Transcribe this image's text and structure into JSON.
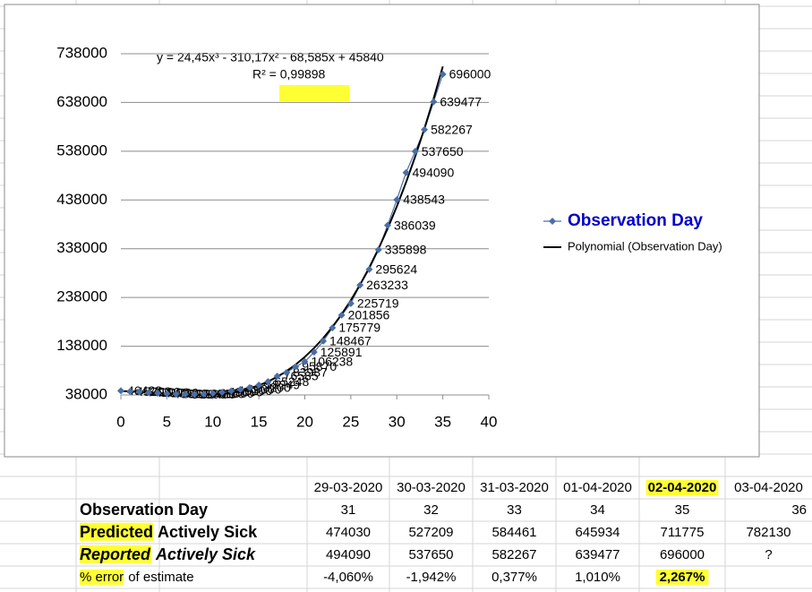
{
  "chart_data": {
    "type": "scatter",
    "trendline_equation": "y = 24,45x³ - 310,17x² - 68,585x + 45840",
    "r_squared": "R² = 0,99898",
    "x": [
      0,
      1,
      2,
      3,
      4,
      5,
      6,
      7,
      8,
      9,
      10,
      11,
      12,
      13,
      14,
      15,
      16,
      17,
      18,
      19,
      20,
      21,
      22,
      23,
      24,
      25,
      26,
      27,
      28,
      29,
      30,
      31,
      32,
      33,
      34,
      35
    ],
    "series": [
      {
        "name": "Observation Day",
        "color": "#4a6fa5",
        "values": [
          46423,
          45200,
          44100,
          42900,
          41700,
          40600,
          39900,
          39500,
          39400,
          40100,
          41500,
          43600,
          46200,
          49300,
          53200,
          58249,
          65248,
          76585,
          83987,
          95870,
          106238,
          125891,
          148467,
          175779,
          201856,
          225719,
          263233,
          295624,
          335898,
          386039,
          438543,
          494090,
          537650,
          582267,
          639477,
          696000
        ]
      },
      {
        "name": "Polynomial (Observation Day)",
        "color": "#000000",
        "values": [
          45840,
          45486,
          44658,
          43503,
          42168,
          40799,
          39544,
          38548,
          37959,
          37923,
          38587,
          40098,
          42603,
          46246,
          51178,
          57542,
          65486,
          75157,
          86702,
          100266,
          116000,
          134046,
          154552,
          177666,
          203533,
          232300,
          264115,
          299123,
          337473,
          379309,
          424779,
          474030,
          527209,
          584461,
          645934,
          711775
        ]
      }
    ],
    "xlim": [
      0,
      40
    ],
    "xticks": [
      0,
      5,
      10,
      15,
      20,
      25,
      30,
      35,
      40
    ],
    "ylim": [
      38000,
      738000
    ],
    "yticks": [
      38000,
      138000,
      238000,
      338000,
      438000,
      538000,
      638000,
      738000
    ],
    "grid": true,
    "legend": "right"
  },
  "table": {
    "header": [
      "29-03-2020",
      "30-03-2020",
      "31-03-2020",
      "01-04-2020",
      "02-04-2020",
      "03-04-2020"
    ],
    "rows": [
      {
        "label": [
          "Observation Day"
        ],
        "cells": [
          31,
          32,
          33,
          34,
          35,
          36
        ]
      },
      {
        "label": [
          "Predicted",
          "Actively Sick"
        ],
        "cells": [
          474030,
          527209,
          584461,
          645934,
          711775,
          782130
        ]
      },
      {
        "label": [
          "Reported",
          "Actively Sick"
        ],
        "cells": [
          494090,
          537650,
          582267,
          639477,
          696000,
          "?"
        ]
      },
      {
        "label": [
          "% error",
          "of estimate"
        ],
        "cells": [
          "-4,060%",
          "-1,942%",
          "0,377%",
          "1,010%",
          "2,267%"
        ]
      }
    ]
  }
}
